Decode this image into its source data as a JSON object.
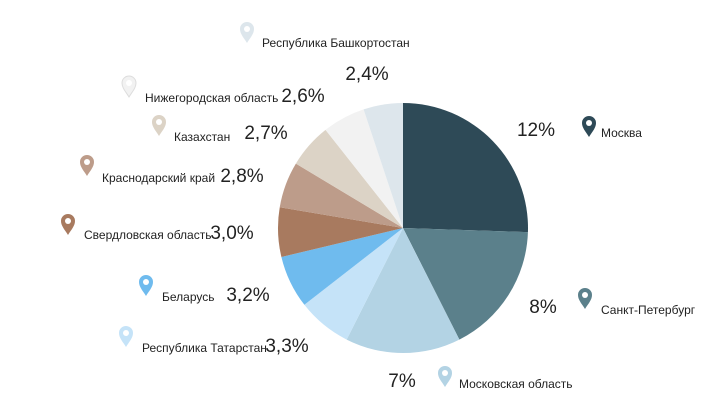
{
  "chart_data": {
    "type": "pie",
    "categories": [
      "Москва",
      "Санкт-Петербург",
      "Московская область",
      "Республика Татарстан",
      "Беларусь",
      "Свердловская область",
      "Краснодарский край",
      "Казахстан",
      "Нижегородская область",
      "Республика Башкортостан"
    ],
    "values": [
      12,
      8,
      7,
      3.3,
      3.2,
      3.0,
      2.8,
      2.7,
      2.6,
      2.4
    ],
    "value_labels": [
      "12%",
      "8%",
      "7%",
      "3,3%",
      "3,2%",
      "3,0%",
      "2,8%",
      "2,7%",
      "2,6%",
      "2,4%"
    ],
    "colors": [
      "#2e4a57",
      "#5b808b",
      "#b3d3e4",
      "#c5e3f8",
      "#6fbbee",
      "#a87a5f",
      "#bd9c8a",
      "#dcd3c6",
      "#f2f2f2",
      "#dde6ec"
    ]
  }
}
